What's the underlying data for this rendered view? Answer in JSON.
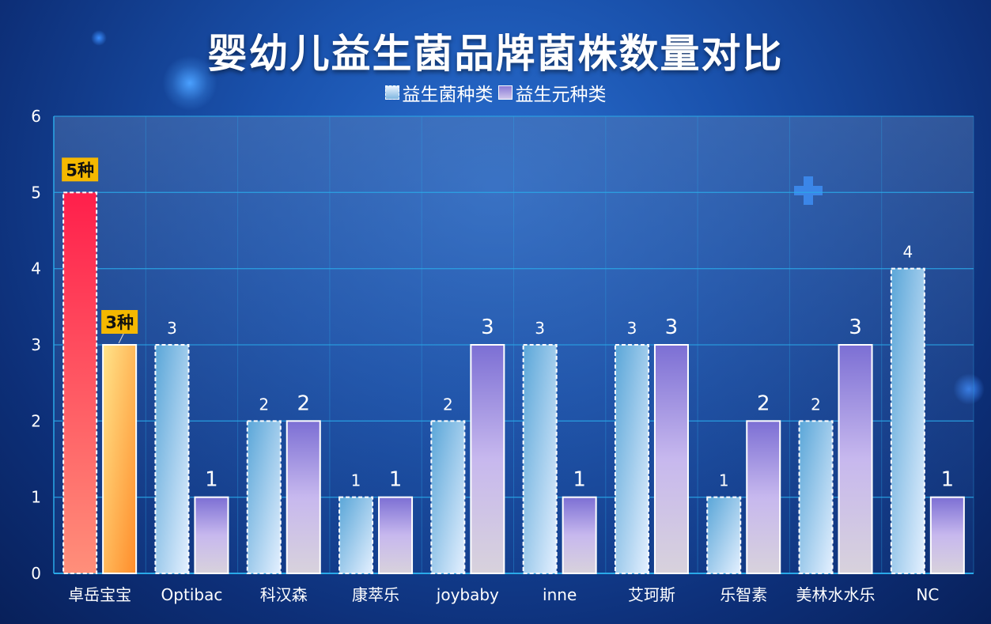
{
  "chart_data": {
    "type": "bar",
    "title": "婴幼儿益生菌品牌菌株数量对比",
    "categories": [
      "卓岳宝宝",
      "Optibac",
      "科汉森",
      "康萃乐",
      "joybaby",
      "inne",
      "艾珂斯",
      "乐智素",
      "美林水水乐",
      "NC"
    ],
    "series": [
      {
        "name": "益生菌种类",
        "values": [
          5,
          3,
          2,
          1,
          2,
          3,
          3,
          1,
          2,
          4
        ]
      },
      {
        "name": "益生元种类",
        "values": [
          3,
          1,
          2,
          1,
          3,
          1,
          3,
          2,
          3,
          1
        ]
      }
    ],
    "ylim": [
      0,
      6
    ],
    "yticks": [
      0,
      1,
      2,
      3,
      4,
      5,
      6
    ],
    "grid": true,
    "legend_position": "top-center",
    "annotations": [
      {
        "category": "卓岳宝宝",
        "series": "益生菌种类",
        "text": "5种"
      },
      {
        "category": "卓岳宝宝",
        "series": "益生元种类",
        "text": "3种"
      }
    ],
    "colors": {
      "highlight_probiotic": [
        "#ff1f4b",
        "#ff8f7a"
      ],
      "highlight_prebiotic": [
        "#ffe48a",
        "#ff8c2a"
      ],
      "probiotic": [
        "#5aa6d8",
        "#dcecff"
      ],
      "prebiotic": [
        "#7c6fd4",
        "#d6cfe0"
      ],
      "badge": "#f5b800"
    }
  }
}
